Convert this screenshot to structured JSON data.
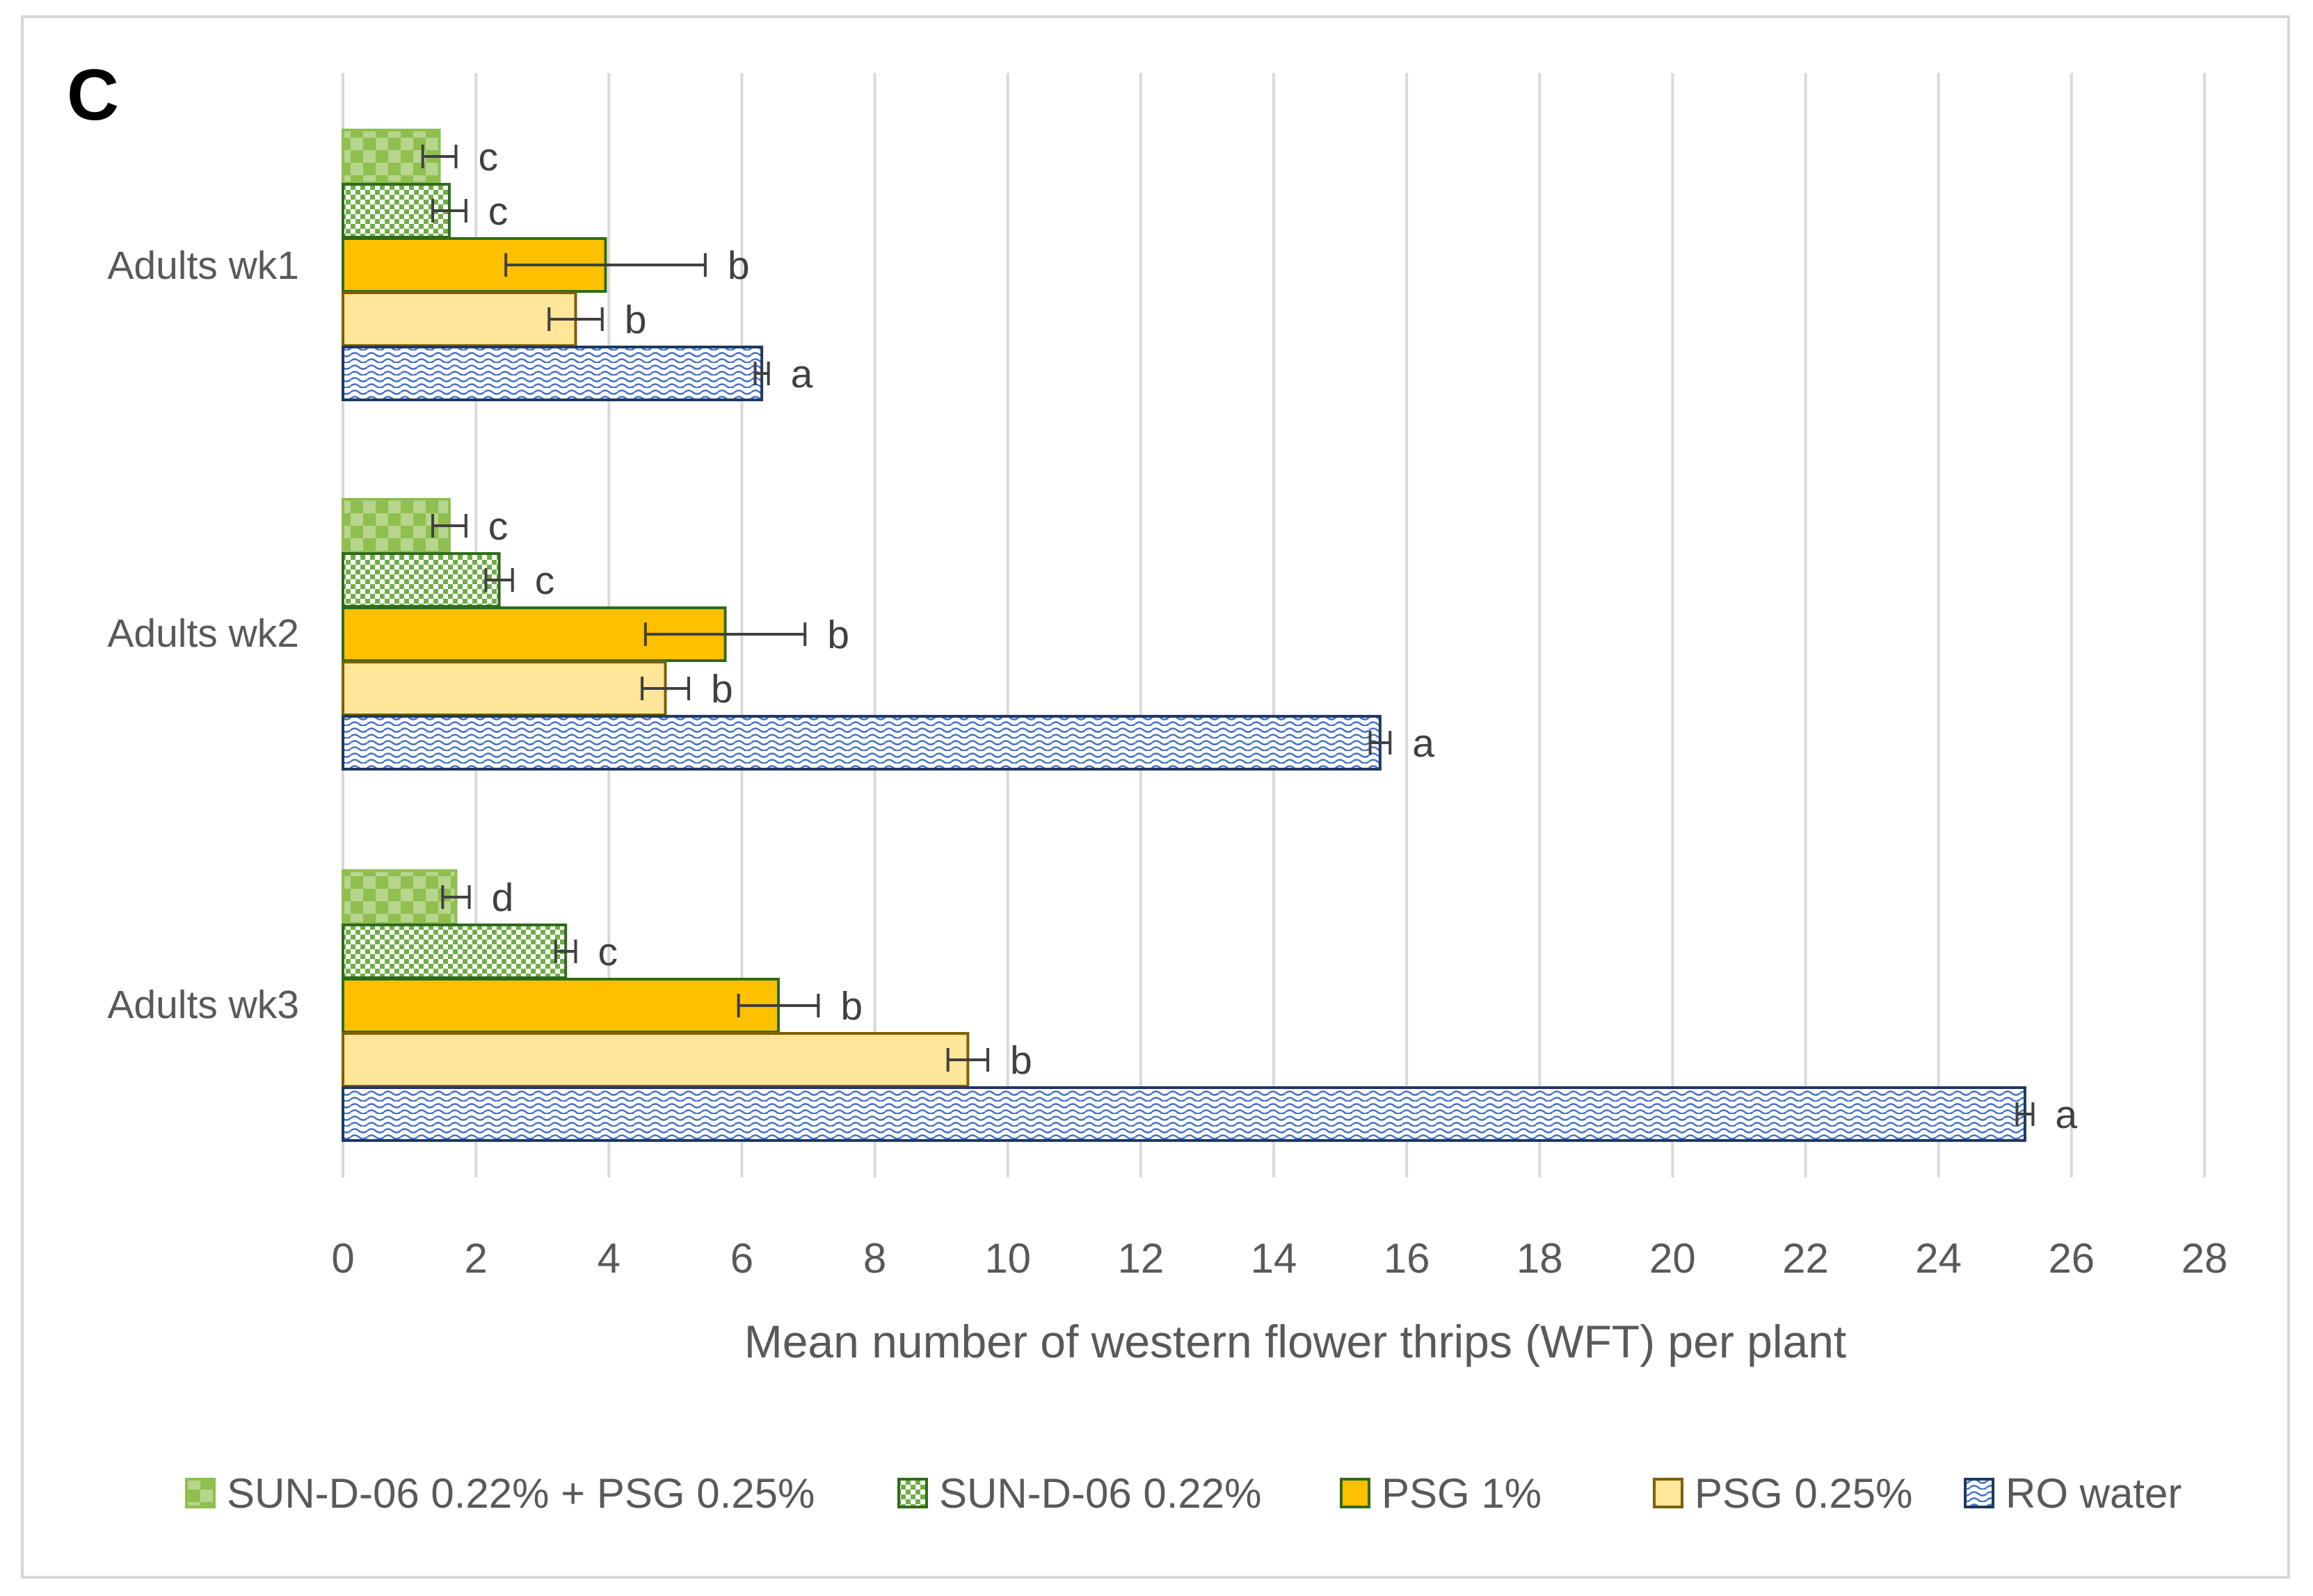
{
  "chart_data": {
    "type": "bar",
    "orientation": "horizontal",
    "panel_label": "C",
    "xlabel": "Mean number of western flower thrips (WFT) per plant",
    "ylabel": "",
    "xlim": [
      0,
      28
    ],
    "xticks": [
      "0",
      "2",
      "4",
      "6",
      "8",
      "10",
      "12",
      "14",
      "16",
      "18",
      "20",
      "22",
      "24",
      "26",
      "28"
    ],
    "grid": "vertical",
    "legend_position": "bottom",
    "categories": [
      "Adults wk1",
      "Adults wk2",
      "Adults wk3"
    ],
    "series": [
      {
        "name": "SUN-D-06 0.22% + PSG 0.25%",
        "values": [
          1.45,
          1.6,
          1.7
        ],
        "errors": [
          0.25,
          0.25,
          0.2
        ],
        "letters": [
          "c",
          "c",
          "d"
        ],
        "fill": "#8fbf4f",
        "stroke": "#8fbf4f",
        "pattern": "large-checker"
      },
      {
        "name": "SUN-D-06 0.22%",
        "values": [
          1.6,
          2.35,
          3.35
        ],
        "errors": [
          0.25,
          0.2,
          0.15
        ],
        "letters": [
          "c",
          "c",
          "c"
        ],
        "fill": "#70ad47",
        "stroke": "#2e6b1a",
        "pattern": "small-checker"
      },
      {
        "name": "PSG 1%",
        "values": [
          3.95,
          5.75,
          6.55
        ],
        "errors": [
          1.5,
          1.2,
          0.6
        ],
        "letters": [
          "b",
          "b",
          "b"
        ],
        "fill": "#ffc000",
        "stroke": "#2e6b1a",
        "pattern": "solid"
      },
      {
        "name": "PSG 0.25%",
        "values": [
          3.5,
          4.85,
          9.4
        ],
        "errors": [
          0.4,
          0.35,
          0.3
        ],
        "letters": [
          "b",
          "b",
          "b"
        ],
        "fill": "#ffe699",
        "stroke": "#7f6000",
        "pattern": "solid"
      },
      {
        "name": "RO water",
        "values": [
          6.3,
          15.6,
          25.3
        ],
        "errors": [
          0.1,
          0.15,
          0.12
        ],
        "letters": [
          "a",
          "a",
          "a"
        ],
        "fill": "#4472c4",
        "stroke": "#1f3864",
        "pattern": "wave"
      }
    ]
  }
}
